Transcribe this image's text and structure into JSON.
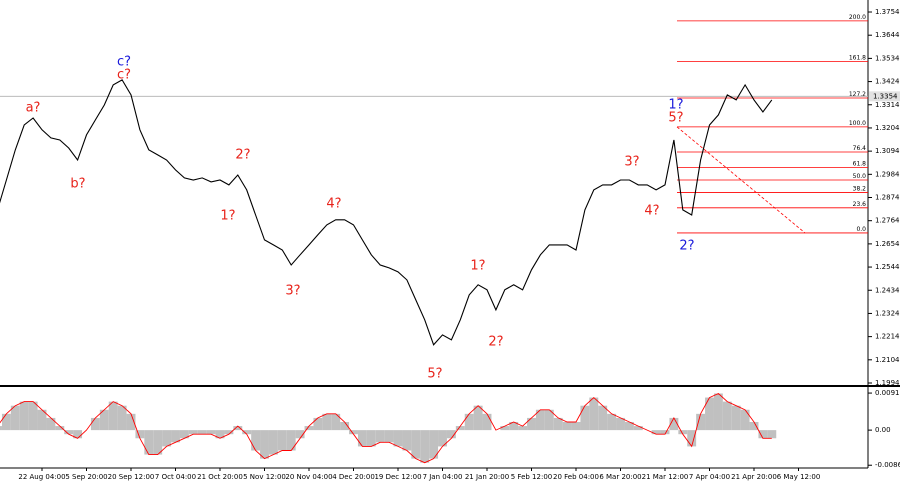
{
  "chart_data": [
    {
      "type": "line",
      "color": "#000000",
      "categories": [
        null,
        null,
        null,
        null,
        null,
        "22 Aug 04:00",
        null,
        null,
        null,
        null,
        "5 Sep 20:00",
        null,
        null,
        null,
        null,
        "20 Sep 12:00",
        null,
        null,
        null,
        null,
        "7 Oct 04:00",
        null,
        null,
        null,
        null,
        "21 Oct 20:00",
        null,
        null,
        null,
        null,
        "5 Nov 12:00",
        null,
        null,
        null,
        null,
        "20 Nov 04:00",
        null,
        null,
        null,
        null,
        "4 Dec 20:00",
        null,
        null,
        null,
        null,
        "19 Dec 12:00",
        null,
        null,
        null,
        null,
        "7 Jan 04:00",
        null,
        null,
        null,
        null,
        "21 Jan 20:00",
        null,
        null,
        null,
        null,
        "5 Feb 12:00",
        null,
        null,
        null,
        null,
        "20 Feb 04:00",
        null,
        null,
        null,
        null,
        "6 Mar 20:00",
        null,
        null,
        null,
        null,
        "21 Mar 12:00",
        null,
        null,
        null,
        null,
        "7 Apr 04:00",
        null,
        null,
        null,
        null,
        "21 Apr 20:00",
        null,
        null,
        null,
        null,
        "6 May 12:00"
      ],
      "values": [
        1.2815,
        1.2957,
        1.31,
        1.3218,
        1.3251,
        1.3195,
        1.3157,
        1.3147,
        1.3109,
        1.3052,
        1.3171,
        1.3242,
        1.3313,
        1.3408,
        1.3432,
        1.3361,
        1.3195,
        1.31,
        1.3076,
        1.3052,
        1.3005,
        1.2967,
        1.2957,
        1.2967,
        1.2948,
        1.2957,
        1.2934,
        1.2981,
        1.291,
        1.2791,
        1.2673,
        1.2649,
        1.2625,
        1.2554,
        1.2602,
        1.2649,
        1.2697,
        1.2744,
        1.2768,
        1.2768,
        1.2744,
        1.2673,
        1.2602,
        1.2554,
        1.254,
        1.2521,
        1.2483,
        1.2388,
        1.2294,
        1.2175,
        1.2222,
        1.2199,
        1.2294,
        1.2412,
        1.246,
        1.2436,
        1.2341,
        1.2436,
        1.246,
        1.2436,
        1.2531,
        1.2602,
        1.2649,
        1.2649,
        1.2649,
        1.2625,
        1.2815,
        1.291,
        1.2934,
        1.2934,
        1.2957,
        1.2957,
        1.2934,
        1.2934,
        1.291,
        1.2934,
        1.3147,
        1.2815,
        1.2791,
        1.3052,
        1.3218,
        1.3266,
        1.3361,
        1.3337,
        1.3408,
        1.3337,
        1.328,
        1.3337,
        null,
        null,
        null
      ],
      "ylim": [
        1.1975,
        1.3811
      ],
      "yticks": [
        1.3754,
        1.3644,
        1.3534,
        1.3424,
        1.3314,
        1.3204,
        1.3094,
        1.2984,
        1.2874,
        1.2764,
        1.2654,
        1.2544,
        1.2434,
        1.2324,
        1.2214,
        1.2104,
        1.1994
      ],
      "current_price": 1.3354,
      "fib_color": "#ff0000",
      "fib_levels": [
        {
          "label": "0.0",
          "value": 1.2706
        },
        {
          "label": "23.6",
          "value": 1.2825
        },
        {
          "label": "38.2",
          "value": 1.2898
        },
        {
          "label": "50.0",
          "value": 1.2957
        },
        {
          "label": "61.8",
          "value": 1.3017
        },
        {
          "label": "76.4",
          "value": 1.309
        },
        {
          "label": "100.0",
          "value": 1.3209
        },
        {
          "label": "127.2",
          "value": 1.3346
        },
        {
          "label": "161.8",
          "value": 1.352
        },
        {
          "label": "200.0",
          "value": 1.3712
        }
      ],
      "annotations": [
        {
          "text": "a?",
          "color": "#e8231b"
        },
        {
          "text": "c?",
          "color": "#1a1adb"
        },
        {
          "text": "c?",
          "color": "#e8231b"
        },
        {
          "text": "b?",
          "color": "#e8231b"
        },
        {
          "text": "1?",
          "color": "#e8231b"
        },
        {
          "text": "2?",
          "color": "#e8231b"
        },
        {
          "text": "3?",
          "color": "#e8231b"
        },
        {
          "text": "4?",
          "color": "#e8231b"
        },
        {
          "text": "5?",
          "color": "#e8231b"
        },
        {
          "text": "1?",
          "color": "#e8231b"
        },
        {
          "text": "2?",
          "color": "#e8231b"
        },
        {
          "text": "3?",
          "color": "#e8231b"
        },
        {
          "text": "4?",
          "color": "#e8231b"
        },
        {
          "text": "1?",
          "color": "#1a1adb"
        },
        {
          "text": "5?",
          "color": "#e8231b"
        },
        {
          "text": "2?",
          "color": "#1a1adb"
        }
      ]
    },
    {
      "type": "bar",
      "color": "#c0c0c0",
      "line_color": "#ff0000",
      "values": [
        0.001,
        0.004,
        0.006,
        0.007,
        0.007,
        0.005,
        0.003,
        0.001,
        -0.001,
        -0.002,
        0.0,
        0.003,
        0.005,
        0.007,
        0.006,
        0.004,
        -0.002,
        -0.006,
        -0.006,
        -0.004,
        -0.003,
        -0.002,
        -0.001,
        -0.001,
        -0.001,
        -0.002,
        -0.001,
        0.001,
        -0.001,
        -0.005,
        -0.007,
        -0.006,
        -0.005,
        -0.005,
        -0.002,
        0.001,
        0.003,
        0.004,
        0.004,
        0.002,
        -0.001,
        -0.004,
        -0.004,
        -0.003,
        -0.003,
        -0.004,
        -0.005,
        -0.007,
        -0.008,
        -0.007,
        -0.004,
        -0.002,
        0.001,
        0.004,
        0.006,
        0.004,
        0.0,
        0.001,
        0.002,
        0.001,
        0.003,
        0.005,
        0.005,
        0.003,
        0.002,
        0.002,
        0.006,
        0.008,
        0.006,
        0.004,
        0.003,
        0.002,
        0.001,
        0.0,
        -0.001,
        -0.001,
        0.003,
        -0.001,
        -0.004,
        0.004,
        0.008,
        0.009,
        0.007,
        0.006,
        0.005,
        0.002,
        -0.002,
        -0.002
      ],
      "ylim": [
        -0.0093,
        0.0101
      ],
      "yticks": [
        0.0091,
        {
          "value": 0,
          "label": "0.00"
        },
        -0.00862
      ]
    }
  ]
}
